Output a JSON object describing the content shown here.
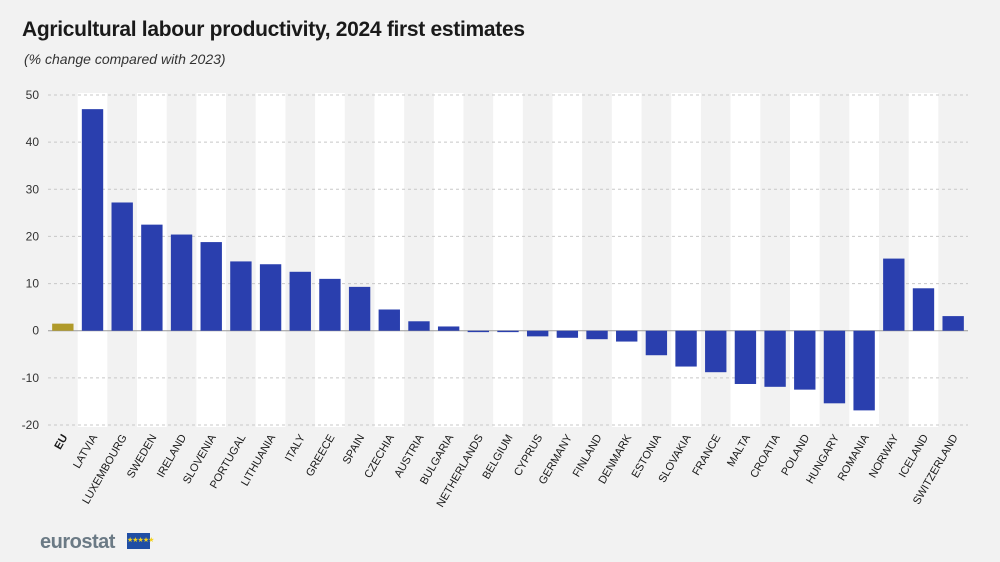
{
  "chart_data": {
    "type": "bar",
    "title": "Agricultural labour productivity, 2024 first estimates",
    "subtitle": "(% change compared with 2023)",
    "xlabel": "",
    "ylabel": "",
    "ylim": [
      -20,
      50
    ],
    "yticks": [
      50,
      40,
      30,
      20,
      10,
      0,
      -10,
      -20
    ],
    "categories": [
      "EU",
      "LATVIA",
      "LUXEMBOURG",
      "SWEDEN",
      "IRELAND",
      "SLOVENIA",
      "PORTUGAL",
      "LITHUANIA",
      "ITALY",
      "GREECE",
      "SPAIN",
      "CZECHIA",
      "AUSTRIA",
      "BULGARIA",
      "NETHERLANDS",
      "BELGIUM",
      "CYPRUS",
      "GERMANY",
      "FINLAND",
      "DENMARK",
      "ESTONIA",
      "SLOVAKIA",
      "FRANCE",
      "MALTA",
      "CROATIA",
      "POLAND",
      "HUNGARY",
      "ROMANIA",
      "NORWAY",
      "ICELAND",
      "SWITZERLAND"
    ],
    "values": [
      1.5,
      47.0,
      27.2,
      22.5,
      20.4,
      18.8,
      14.7,
      14.1,
      12.5,
      11.0,
      9.3,
      4.5,
      2.0,
      0.9,
      -0.3,
      -0.3,
      -1.2,
      -1.5,
      -1.8,
      -2.3,
      -5.2,
      -7.6,
      -8.8,
      -11.3,
      -11.9,
      -12.5,
      -15.4,
      -16.9,
      15.3,
      9.0,
      3.1
    ],
    "colors": {
      "eu": "#b09a2a",
      "country": "#2a3fae",
      "band": "#ffffff",
      "grid": "#c8c8c8"
    }
  },
  "footer": {
    "logo_text": "eurostat",
    "flag_stars": "★★★★★"
  }
}
